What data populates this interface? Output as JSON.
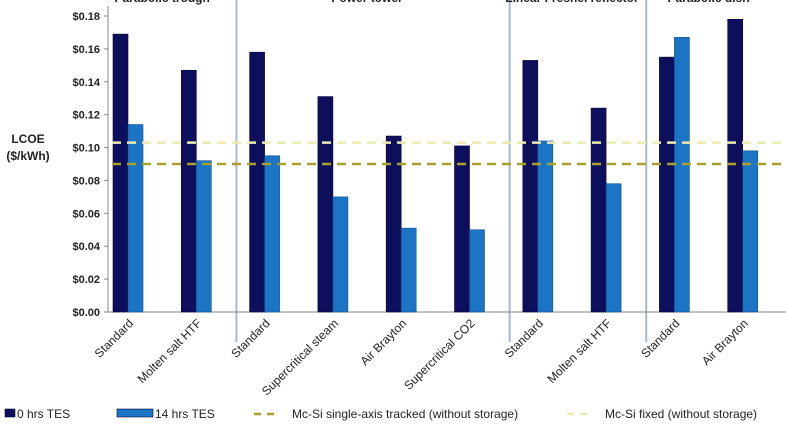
{
  "chart_data": {
    "type": "bar",
    "ylabel": "LCOE\n($/kWh)",
    "ylim": [
      0,
      0.18
    ],
    "yticks": [
      "$0.00",
      "$0.02",
      "$0.04",
      "$0.06",
      "$0.08",
      "$0.10",
      "$0.12",
      "$0.14",
      "$0.16",
      "$0.18"
    ],
    "groups": [
      {
        "label": "Parabolic trough",
        "count": 2
      },
      {
        "label": "Power tower",
        "count": 4
      },
      {
        "label": "Linear Fresnel reflector",
        "count": 2
      },
      {
        "label": "Parabolic dish",
        "count": 2
      }
    ],
    "categories": [
      "Standard",
      "Molten salt HTF",
      "Standard",
      "Supercritical steam",
      "Air Brayton",
      "Supercritical CO2",
      "Standard",
      "Molten salt HTF",
      "Standard",
      "Air Brayton"
    ],
    "series": [
      {
        "name": "0 hrs TES",
        "color": "#0d0f5c",
        "values": [
          0.169,
          0.147,
          0.158,
          0.131,
          0.107,
          0.101,
          0.153,
          0.124,
          0.155,
          0.178
        ]
      },
      {
        "name": "14 hrs TES",
        "color": "#1b74c4",
        "values": [
          0.114,
          0.092,
          0.095,
          0.07,
          0.051,
          0.05,
          0.104,
          0.078,
          0.167,
          0.098
        ]
      }
    ],
    "reference_lines": [
      {
        "name": "Mc-Si single-axis tracked (without storage)",
        "value": 0.09,
        "color": "#a9a12a"
      },
      {
        "name": "Mc-Si fixed (without storage)",
        "value": 0.103,
        "color": "#ecebb0"
      }
    ],
    "legend_position": "bottom",
    "grid": false
  }
}
